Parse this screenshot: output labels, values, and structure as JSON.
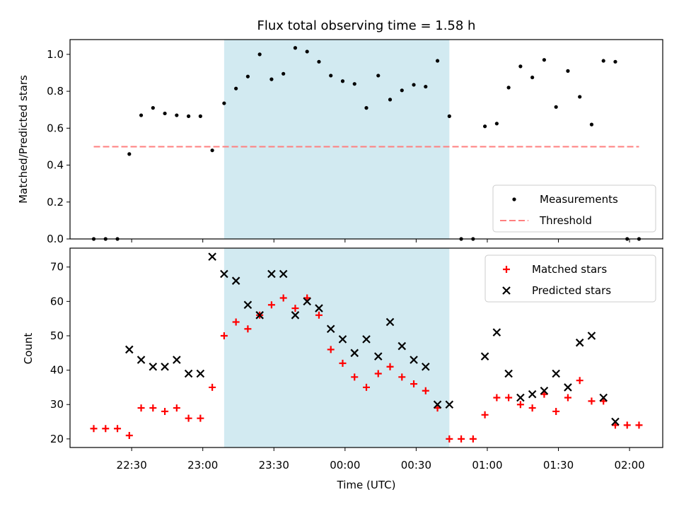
{
  "figure": {
    "title": "Flux total observing time = 1.58 h",
    "xlabel": "Time (UTC)",
    "x_ticks": [
      "22:30",
      "23:00",
      "23:30",
      "00:00",
      "00:30",
      "01:00",
      "01:30",
      "02:00"
    ],
    "shaded_window_color": "#add8e6"
  },
  "chart_data": [
    {
      "type": "scatter",
      "ylabel": "Matched/Predicted stars",
      "ylim": [
        0,
        1.08
      ],
      "y_ticks": [
        "0.0",
        "0.2",
        "0.4",
        "0.6",
        "0.8",
        "1.0"
      ],
      "shaded_window": [
        "23:09",
        "00:44"
      ],
      "series": [
        {
          "name": "Measurements",
          "color": "#000000",
          "marker": "dot",
          "x": [
            "22:14",
            "22:19",
            "22:24",
            "22:29",
            "22:34",
            "22:39",
            "22:44",
            "22:49",
            "22:54",
            "22:59",
            "23:04",
            "23:09",
            "23:14",
            "23:19",
            "23:24",
            "23:29",
            "23:34",
            "23:39",
            "23:44",
            "23:49",
            "23:54",
            "23:59",
            "00:04",
            "00:09",
            "00:14",
            "00:19",
            "00:24",
            "00:29",
            "00:34",
            "00:39",
            "00:44",
            "00:49",
            "00:54",
            "00:59",
            "01:04",
            "01:09",
            "01:14",
            "01:19",
            "01:24",
            "01:29",
            "01:34",
            "01:39",
            "01:44",
            "01:49",
            "01:54",
            "01:59",
            "02:04"
          ],
          "y": [
            0,
            0,
            0,
            0.46,
            0.67,
            0.71,
            0.68,
            0.67,
            0.665,
            0.665,
            0.48,
            0.735,
            0.815,
            0.88,
            1.0,
            0.865,
            0.895,
            1.035,
            1.015,
            0.96,
            0.885,
            0.855,
            0.84,
            0.71,
            0.885,
            0.755,
            0.805,
            0.835,
            0.825,
            0.965,
            0.665,
            0,
            0,
            0.61,
            0.625,
            0.82,
            0.935,
            0.875,
            0.97,
            0.715,
            0.91,
            0.77,
            0.62,
            0.965,
            0.96,
            0,
            0
          ]
        },
        {
          "name": "Threshold",
          "color": "#ff7f7f",
          "style": "dashed",
          "x": [
            "22:14",
            "02:04"
          ],
          "y": [
            0.5,
            0.5
          ]
        }
      ],
      "legend": "lower right",
      "grid": false
    },
    {
      "type": "scatter",
      "ylabel": "Count",
      "ylim": [
        17.5,
        75.5
      ],
      "y_ticks": [
        "20",
        "30",
        "40",
        "50",
        "60",
        "70"
      ],
      "shaded_window": [
        "23:09",
        "00:44"
      ],
      "series": [
        {
          "name": "Matched stars",
          "color": "#ff0000",
          "marker": "plus",
          "x": [
            "22:14",
            "22:19",
            "22:24",
            "22:29",
            "22:34",
            "22:39",
            "22:44",
            "22:49",
            "22:54",
            "22:59",
            "23:04",
            "23:09",
            "23:14",
            "23:19",
            "23:24",
            "23:29",
            "23:34",
            "23:39",
            "23:44",
            "23:49",
            "23:54",
            "23:59",
            "00:04",
            "00:09",
            "00:14",
            "00:19",
            "00:24",
            "00:29",
            "00:34",
            "00:39",
            "00:44",
            "00:49",
            "00:54",
            "00:59",
            "01:04",
            "01:09",
            "01:14",
            "01:19",
            "01:24",
            "01:29",
            "01:34",
            "01:39",
            "01:44",
            "01:49",
            "01:54",
            "01:59",
            "02:04"
          ],
          "y": [
            23,
            23,
            23,
            21,
            29,
            29,
            28,
            29,
            26,
            26,
            35,
            50,
            54,
            52,
            56,
            59,
            61,
            58,
            61,
            56,
            46,
            42,
            38,
            35,
            39,
            41,
            38,
            36,
            34,
            29,
            20,
            20,
            20,
            27,
            32,
            32,
            30,
            29,
            33,
            28,
            32,
            37,
            31,
            31,
            24,
            24,
            24
          ]
        },
        {
          "name": "Predicted stars",
          "color": "#000000",
          "marker": "x",
          "x": [
            "22:29",
            "22:34",
            "22:39",
            "22:44",
            "22:49",
            "22:54",
            "22:59",
            "23:04",
            "23:09",
            "23:14",
            "23:19",
            "23:24",
            "23:29",
            "23:34",
            "23:39",
            "23:44",
            "23:49",
            "23:54",
            "23:59",
            "00:04",
            "00:09",
            "00:14",
            "00:19",
            "00:24",
            "00:29",
            "00:34",
            "00:39",
            "00:44",
            "00:59",
            "01:04",
            "01:09",
            "01:14",
            "01:19",
            "01:24",
            "01:29",
            "01:34",
            "01:39",
            "01:44",
            "01:49",
            "01:54"
          ],
          "y": [
            46,
            43,
            41,
            41,
            43,
            39,
            39,
            73,
            68,
            66,
            59,
            56,
            68,
            68,
            56,
            60,
            58,
            52,
            49,
            45,
            49,
            44,
            54,
            47,
            43,
            41,
            30,
            30,
            44,
            51,
            39,
            32,
            33,
            34,
            39,
            35,
            48,
            50,
            32,
            25
          ]
        }
      ],
      "legend": "upper right",
      "grid": false
    }
  ]
}
